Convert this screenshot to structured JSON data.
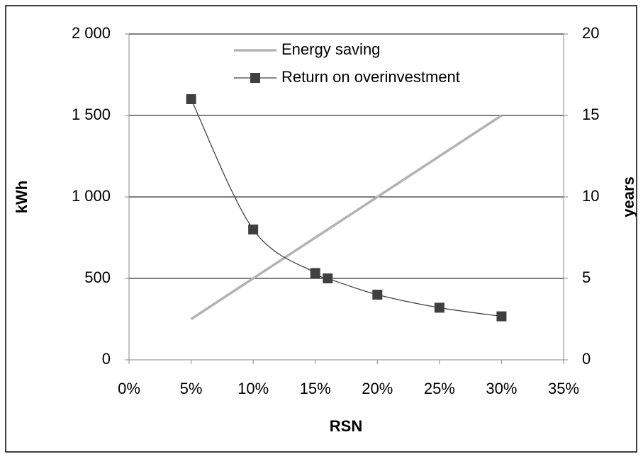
{
  "chart_data": {
    "type": "line",
    "x": [
      5,
      10,
      15,
      16,
      20,
      25,
      30
    ],
    "series": [
      {
        "name": "Energy saving",
        "color": "#b3b3b3",
        "values": [
          250,
          500,
          750,
          800,
          1000,
          1250,
          1500
        ]
      },
      {
        "name": "Return on overinvestment",
        "color": "#404040",
        "axis": "y2",
        "marker": "square",
        "smooth": true,
        "values": [
          16,
          8,
          5.33,
          5,
          4,
          3.2,
          2.67
        ]
      }
    ],
    "xlabel": "RSN",
    "ylabel": "kWh",
    "y2label": "years",
    "xlim": [
      0,
      35
    ],
    "xticks": [
      {
        "value": 0,
        "label": "0%"
      },
      {
        "value": 5,
        "label": "5%"
      },
      {
        "value": 10,
        "label": "10%"
      },
      {
        "value": 15,
        "label": "15%"
      },
      {
        "value": 20,
        "label": "20%"
      },
      {
        "value": 25,
        "label": "25%"
      },
      {
        "value": 30,
        "label": "30%"
      },
      {
        "value": 35,
        "label": "35%"
      }
    ],
    "ylim": [
      0,
      2000
    ],
    "yticks": [
      0,
      500,
      {
        "value": 1000,
        "label": "1 000"
      },
      {
        "value": 1500,
        "label": "1 500"
      },
      {
        "value": 2000,
        "label": "2 000"
      }
    ],
    "y2lim": [
      0,
      20
    ],
    "y2ticks": [
      0,
      5,
      10,
      15,
      20
    ],
    "grid": true,
    "legend": "top"
  }
}
